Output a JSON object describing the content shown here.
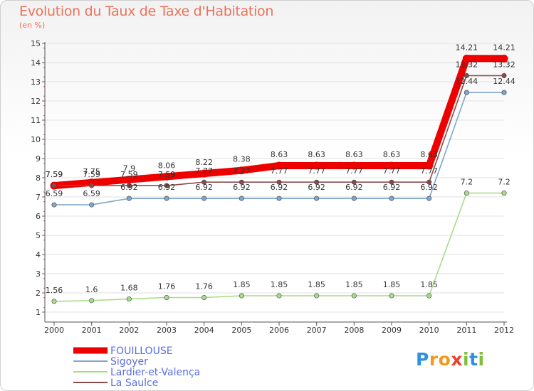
{
  "title": "Evolution du Taux de Taxe d'Habitation",
  "subtitle": "(en %)",
  "logo": {
    "letters": [
      "P",
      "r",
      "o",
      "x",
      "i",
      "t",
      "i"
    ],
    "colors": [
      "#2f8fe0",
      "#f29a1d",
      "#f29a1d",
      "#e9432f",
      "#7fbf3a",
      "#2f8fe0",
      "#7fbf3a"
    ]
  },
  "chart_data": {
    "type": "line",
    "title": "Evolution du Taux de Taxe d'Habitation",
    "subtitle": "(en %)",
    "xlabel": "",
    "ylabel": "",
    "ylim": [
      1,
      15
    ],
    "y_ticks": [
      1,
      2,
      3,
      4,
      5,
      6,
      7,
      8,
      9,
      10,
      11,
      12,
      13,
      14,
      15
    ],
    "x_ticks": [
      "2000",
      "2001",
      "2002",
      "2003",
      "2004",
      "2005",
      "2006",
      "2007",
      "2008",
      "2009",
      "2010",
      "2011",
      "2012"
    ],
    "grid": "horizontal",
    "legend_position": "bottom-left",
    "series": [
      {
        "name": "FOUILLOUSE",
        "color": "#ee0000",
        "emphasis": true,
        "values": [
          7.59,
          7.75,
          7.9,
          8.06,
          8.22,
          8.38,
          8.63,
          8.63,
          8.63,
          8.63,
          8.63,
          14.21,
          14.21
        ],
        "labels": [
          "7.59",
          "7.75",
          "7.9",
          "8.06",
          "8.22",
          "8.38",
          "8.63",
          "8.63",
          "8.63",
          "8.63",
          "8.63",
          "14.21",
          "14.21"
        ]
      },
      {
        "name": "Sigoyer",
        "color": "#7fa6cc",
        "emphasis": false,
        "values": [
          6.59,
          6.59,
          6.92,
          6.92,
          6.92,
          6.92,
          6.92,
          6.92,
          6.92,
          6.92,
          6.92,
          12.44,
          12.44
        ],
        "labels": [
          "6.59",
          "6.59",
          "6.92",
          "6.92",
          "6.92",
          "6.92",
          "6.92",
          "6.92",
          "6.92",
          "6.92",
          "6.92",
          "12.44",
          "12.44"
        ]
      },
      {
        "name": "Lardier-et-Valença",
        "color": "#a9dc8a",
        "emphasis": false,
        "values": [
          1.56,
          1.6,
          1.68,
          1.76,
          1.76,
          1.85,
          1.85,
          1.85,
          1.85,
          1.85,
          1.85,
          7.2,
          7.2
        ],
        "labels": [
          "1.56",
          "1.6",
          "1.68",
          "1.76",
          "1.76",
          "1.85",
          "1.85",
          "1.85",
          "1.85",
          "1.85",
          "1.85",
          "7.2",
          "7.2"
        ]
      },
      {
        "name": "La Saulce",
        "color": "#8b4a4a",
        "emphasis": false,
        "values": [
          7.59,
          7.59,
          7.59,
          7.59,
          7.77,
          7.77,
          7.77,
          7.77,
          7.77,
          7.77,
          7.77,
          13.32,
          13.32
        ],
        "labels": [
          "7.59",
          "7.59",
          "7.59",
          "7.59",
          "7.77",
          "7.77",
          "7.77",
          "7.77",
          "7.77",
          "7.77",
          "7.77",
          "13.32",
          "13.32"
        ]
      }
    ]
  }
}
